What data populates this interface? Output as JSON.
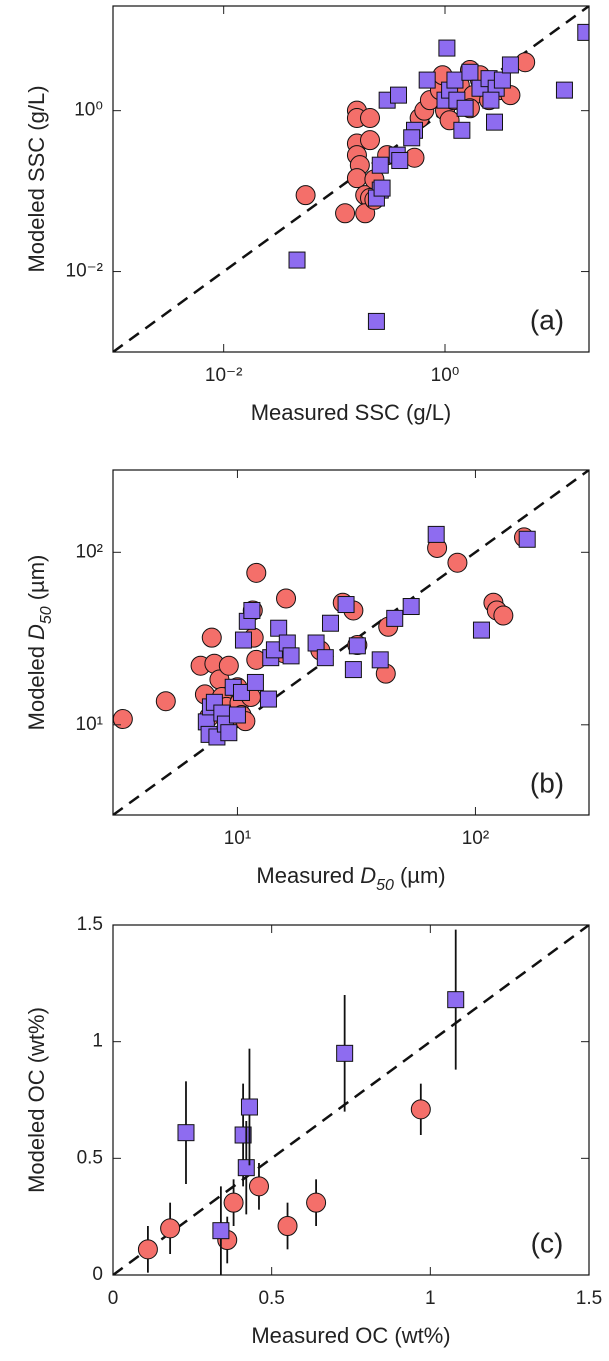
{
  "chart_data": [
    {
      "type": "scatter",
      "xlabel": "Measured SSC (g/L)",
      "ylabel": "Modeled SSC (g/L)",
      "annotation": "(a)",
      "xscale": "log",
      "yscale": "log",
      "xlim": [
        0.001,
        20
      ],
      "ylim": [
        0.001,
        20
      ],
      "xticks": [
        {
          "value": 0.01,
          "label": "10⁻²"
        },
        {
          "value": 1,
          "label": "10⁰"
        }
      ],
      "yticks": [
        {
          "value": 0.01,
          "label": "10⁻²"
        },
        {
          "value": 1,
          "label": "10⁰"
        }
      ],
      "identity_line": true,
      "series": [
        {
          "color": "#f46f6a",
          "marker": "circle",
          "x": [
            0.055,
            0.16,
            0.16,
            0.16,
            0.16,
            0.17,
            0.16,
            0.19,
            0.21,
            0.19,
            0.23,
            0.23,
            0.21,
            0.21,
            0.125,
            0.3,
            0.53,
            0.59,
            0.65,
            0.73,
            0.9,
            1.0,
            1.1,
            1.2,
            1.36,
            1.68,
            1.8,
            2.07,
            2.5,
            3.1,
            3.9,
            1.68,
            0.95,
            5.3,
            2.07
          ],
          "y": [
            0.089,
            1.0,
            0.81,
            0.39,
            0.28,
            0.21,
            0.145,
            0.089,
            0.082,
            0.053,
            0.14,
            0.078,
            0.43,
            0.81,
            0.053,
            0.28,
            0.26,
            0.81,
            1.0,
            1.35,
            1.8,
            1.0,
            0.76,
            1.35,
            2.07,
            3.2,
            1.56,
            2.4,
            1.35,
            1.8,
            1.56,
            1.07,
            2.76,
            4.0,
            2.76
          ]
        },
        {
          "color": "#8e6cf0",
          "marker": "square",
          "x": [
            0.046,
            0.24,
            0.26,
            0.3,
            0.26,
            0.24,
            0.27,
            0.37,
            0.53,
            0.5,
            0.38,
            0.39,
            0.69,
            1.04,
            1.0,
            1.1,
            1.23,
            1.28,
            1.42,
            1.52,
            1.68,
            2.07,
            2.5,
            2.9,
            3.3,
            3.9,
            2.8,
            12,
            18.7,
            2.6
          ],
          "y": [
            0.0139,
            0.0024,
            0.21,
            1.35,
            0.103,
            0.082,
            0.109,
            0.28,
            0.57,
            0.46,
            1.56,
            0.24,
            2.4,
            6.0,
            1.35,
            1.8,
            2.4,
            1.35,
            0.57,
            1.07,
            3.0,
            1.9,
            2.5,
            1.9,
            2.4,
            3.7,
            0.72,
            1.8,
            9.4,
            1.35
          ]
        }
      ]
    },
    {
      "type": "scatter",
      "xlabel": [
        "Measured",
        "D",
        "50",
        "(µm)"
      ],
      "ylabel": [
        "Modeled",
        "D",
        "50",
        "(µm)"
      ],
      "annotation": "(b)",
      "xscale": "log",
      "yscale": "log",
      "xlim": [
        3,
        300
      ],
      "ylim": [
        3,
        300
      ],
      "xticks": [
        {
          "value": 10,
          "label": "10¹"
        },
        {
          "value": 100,
          "label": "10²"
        }
      ],
      "yticks": [
        {
          "value": 10,
          "label": "10¹"
        },
        {
          "value": 100,
          "label": "10²"
        }
      ],
      "identity_line": true,
      "series": [
        {
          "color": "#f46f6a",
          "marker": "circle",
          "x": [
            3.3,
            5.0,
            7.0,
            7.3,
            7.6,
            7.8,
            8.0,
            8.4,
            8.6,
            9.0,
            9.2,
            9.6,
            10,
            10.2,
            10.4,
            10.8,
            11.4,
            11.6,
            12.0,
            11.7,
            12.0,
            15.7,
            16.0,
            22.3,
            27.7,
            30.7,
            31.9,
            42,
            43,
            69,
            84,
            119,
            123,
            131,
            160
          ],
          "y": [
            10.8,
            13.7,
            22,
            15,
            11.1,
            32,
            22.6,
            18.3,
            14.5,
            12.7,
            22,
            10.8,
            16.5,
            13.4,
            11.4,
            10.5,
            14.5,
            46,
            76,
            32,
            23.8,
            26,
            54,
            27,
            51,
            46,
            29,
            19.8,
            37,
            106,
            87,
            51,
            46,
            43,
            122
          ]
        },
        {
          "color": "#8e6cf0",
          "marker": "square",
          "x": [
            7.4,
            7.6,
            7.7,
            8.0,
            8.2,
            8.6,
            8.9,
            9.2,
            9.6,
            10,
            10.4,
            10.6,
            11.0,
            11.5,
            11.9,
            13.5,
            13.8,
            14.3,
            14.9,
            16.2,
            16.8,
            21.4,
            23.4,
            24.6,
            28.6,
            30.7,
            31.9,
            39.8,
            45.8,
            53.7,
            68.4,
            106,
            165
          ],
          "y": [
            10.4,
            8.8,
            12.7,
            13.5,
            8.5,
            11.7,
            10.1,
            9.0,
            16.5,
            11.4,
            15.4,
            31,
            39.8,
            46,
            17.6,
            14.1,
            24.5,
            27.2,
            36.3,
            29.8,
            25.1,
            29.8,
            24.5,
            38.8,
            49.8,
            20.9,
            28.7,
            23.8,
            41.4,
            48.5,
            127,
            35.4,
            119
          ]
        }
      ]
    },
    {
      "type": "scatter",
      "xlabel": "Measured OC (wt%)",
      "ylabel": "Modeled OC (wt%)",
      "annotation": "(c)",
      "xscale": "linear",
      "yscale": "linear",
      "xlim": [
        0,
        1.5
      ],
      "ylim": [
        0,
        1.5
      ],
      "xticks": [
        0,
        0.5,
        1,
        1.5
      ],
      "yticks": [
        0,
        0.5,
        1,
        1.5
      ],
      "identity_line": true,
      "series": [
        {
          "color": "#f46f6a",
          "marker": "circle",
          "x": [
            0.11,
            0.18,
            0.36,
            0.38,
            0.46,
            0.55,
            0.64,
            0.97
          ],
          "y": [
            0.11,
            0.2,
            0.15,
            0.31,
            0.38,
            0.21,
            0.31,
            0.71
          ],
          "yerr": [
            0.1,
            0.11,
            0.1,
            0.1,
            0.1,
            0.1,
            0.1,
            0.11
          ]
        },
        {
          "color": "#8e6cf0",
          "marker": "square",
          "x": [
            0.23,
            0.34,
            0.41,
            0.42,
            0.43,
            0.73,
            1.08
          ],
          "y": [
            0.61,
            0.19,
            0.6,
            0.46,
            0.72,
            0.95,
            1.18
          ],
          "yerr": [
            0.22,
            0.19,
            0.22,
            0.2,
            0.25,
            0.25,
            0.3
          ]
        }
      ]
    }
  ]
}
